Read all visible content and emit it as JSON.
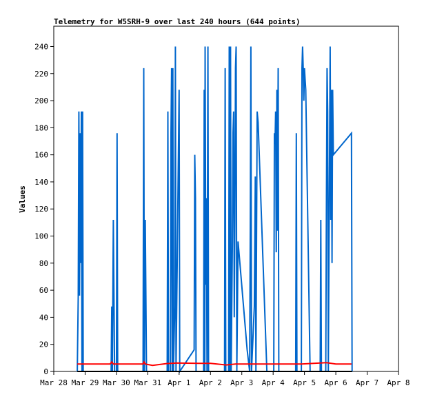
{
  "chart_data": {
    "type": "line",
    "title": "Telemetry for W5SRH-9 over last 240 hours (644 points)",
    "xlabel": "",
    "ylabel": "Values",
    "ylim": [
      0,
      255
    ],
    "xlim": [
      0,
      11
    ],
    "yticks": [
      0,
      20,
      40,
      60,
      80,
      100,
      120,
      140,
      160,
      180,
      200,
      220,
      240
    ],
    "xtick_labels": [
      "Mar 28",
      "Mar 29",
      "Mar 30",
      "Mar 31",
      "Apr 1",
      "Apr 2",
      "Apr 3",
      "Apr 4",
      "Apr 5",
      "Apr 6",
      "Apr 7",
      "Apr 8"
    ],
    "x_unit": "days since Mar 28 00:00",
    "grid": false,
    "series": [
      {
        "color": "#0066cc",
        "points": [
          [
            0.75,
            0
          ],
          [
            0.78,
            56
          ],
          [
            0.8,
            192
          ],
          [
            0.82,
            56
          ],
          [
            0.84,
            176
          ],
          [
            0.86,
            80
          ],
          [
            0.88,
            192
          ],
          [
            0.9,
            0
          ],
          [
            0.92,
            192
          ],
          [
            0.94,
            0
          ],
          [
            1.83,
            0
          ],
          [
            1.85,
            48
          ],
          [
            1.87,
            0
          ],
          [
            1.9,
            112
          ],
          [
            1.92,
            56
          ],
          [
            1.94,
            0
          ],
          [
            2.0,
            0
          ],
          [
            2.02,
            176
          ],
          [
            2.04,
            0
          ],
          [
            2.85,
            0
          ],
          [
            2.87,
            224
          ],
          [
            2.89,
            0
          ],
          [
            2.92,
            112
          ],
          [
            2.94,
            56
          ],
          [
            2.96,
            0
          ],
          [
            3.62,
            0
          ],
          [
            3.64,
            192
          ],
          [
            3.66,
            0
          ],
          [
            3.72,
            0
          ],
          [
            3.74,
            176
          ],
          [
            3.76,
            224
          ],
          [
            3.78,
            0
          ],
          [
            3.8,
            224
          ],
          [
            3.82,
            0
          ],
          [
            3.86,
            48
          ],
          [
            3.88,
            240
          ],
          [
            3.9,
            0
          ],
          [
            4.0,
            208
          ],
          [
            4.02,
            0
          ],
          [
            4.48,
            16
          ],
          [
            4.5,
            160
          ],
          [
            4.52,
            128
          ],
          [
            4.54,
            0
          ],
          [
            4.78,
            0
          ],
          [
            4.8,
            208
          ],
          [
            4.82,
            0
          ],
          [
            4.83,
            240
          ],
          [
            4.85,
            64
          ],
          [
            4.87,
            128
          ],
          [
            4.89,
            0
          ],
          [
            4.92,
            240
          ],
          [
            4.94,
            0
          ],
          [
            5.45,
            0
          ],
          [
            5.47,
            224
          ],
          [
            5.49,
            0
          ],
          [
            5.58,
            0
          ],
          [
            5.6,
            240
          ],
          [
            5.62,
            0
          ],
          [
            5.64,
            240
          ],
          [
            5.66,
            0
          ],
          [
            5.7,
            96
          ],
          [
            5.72,
            176
          ],
          [
            5.74,
            192
          ],
          [
            5.76,
            40
          ],
          [
            5.78,
            112
          ],
          [
            5.8,
            224
          ],
          [
            5.82,
            240
          ],
          [
            5.84,
            0
          ],
          [
            5.88,
            96
          ],
          [
            6.17,
            16
          ],
          [
            6.25,
            0
          ],
          [
            6.27,
            104
          ],
          [
            6.29,
            240
          ],
          [
            6.31,
            0
          ],
          [
            6.4,
            48
          ],
          [
            6.43,
            144
          ],
          [
            6.45,
            0
          ],
          [
            6.47,
            96
          ],
          [
            6.49,
            192
          ],
          [
            6.52,
            184
          ],
          [
            6.8,
            0
          ],
          [
            6.85,
            0
          ],
          [
            7.02,
            0
          ],
          [
            7.04,
            176
          ],
          [
            7.06,
            168
          ],
          [
            7.08,
            192
          ],
          [
            7.1,
            88
          ],
          [
            7.12,
            208
          ],
          [
            7.14,
            104
          ],
          [
            7.16,
            224
          ],
          [
            7.18,
            0
          ],
          [
            7.72,
            0
          ],
          [
            7.74,
            176
          ],
          [
            7.76,
            0
          ],
          [
            7.9,
            0
          ],
          [
            7.92,
            224
          ],
          [
            7.94,
            240
          ],
          [
            7.96,
            224
          ],
          [
            7.98,
            200
          ],
          [
            8.0,
            224
          ],
          [
            8.02,
            216
          ],
          [
            8.04,
            208
          ],
          [
            8.18,
            0
          ],
          [
            8.5,
            0
          ],
          [
            8.52,
            112
          ],
          [
            8.54,
            0
          ],
          [
            8.68,
            0
          ],
          [
            8.7,
            128
          ],
          [
            8.72,
            224
          ],
          [
            8.74,
            192
          ],
          [
            8.76,
            0
          ],
          [
            8.82,
            240
          ],
          [
            8.84,
            112
          ],
          [
            8.86,
            208
          ],
          [
            8.88,
            80
          ],
          [
            8.9,
            208
          ],
          [
            8.92,
            160
          ],
          [
            9.5,
            176
          ],
          [
            9.52,
            0
          ]
        ]
      },
      {
        "color": "#ff0000",
        "points": [
          [
            0.75,
            5.5
          ],
          [
            1.8,
            5.5
          ],
          [
            1.85,
            7
          ],
          [
            1.9,
            5.5
          ],
          [
            2.85,
            5.5
          ],
          [
            2.88,
            7
          ],
          [
            2.92,
            5.5
          ],
          [
            3.15,
            4.5
          ],
          [
            3.6,
            5.8
          ],
          [
            3.9,
            6.2
          ],
          [
            4.6,
            6.0
          ],
          [
            5.0,
            6.0
          ],
          [
            5.5,
            4.8
          ],
          [
            5.8,
            5.5
          ],
          [
            6.5,
            5.5
          ],
          [
            7.0,
            5.5
          ],
          [
            7.9,
            5.5
          ],
          [
            8.1,
            5.7
          ],
          [
            8.7,
            6.5
          ],
          [
            9.0,
            5.5
          ],
          [
            9.5,
            5.5
          ]
        ]
      },
      {
        "color": "#000000",
        "points": [
          [
            0.75,
            0
          ],
          [
            9.52,
            0
          ]
        ]
      }
    ]
  }
}
